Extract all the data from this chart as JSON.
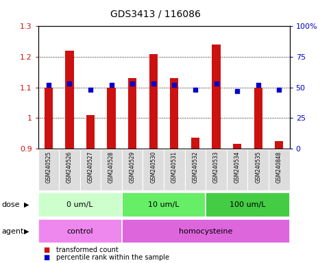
{
  "title": "GDS3413 / 116086",
  "samples": [
    "GSM240525",
    "GSM240526",
    "GSM240527",
    "GSM240528",
    "GSM240529",
    "GSM240530",
    "GSM240531",
    "GSM240532",
    "GSM240533",
    "GSM240534",
    "GSM240535",
    "GSM240848"
  ],
  "transformed_count": [
    1.1,
    1.22,
    1.01,
    1.1,
    1.13,
    1.21,
    1.13,
    0.935,
    1.24,
    0.915,
    1.1,
    0.925
  ],
  "percentile_rank": [
    52,
    53,
    48,
    52,
    53,
    53,
    52,
    48,
    53,
    47,
    52,
    48
  ],
  "ylim_left": [
    0.9,
    1.3
  ],
  "ylim_right": [
    0,
    100
  ],
  "bar_color": "#cc1111",
  "dot_color": "#0000cc",
  "bar_width": 0.4,
  "dose_groups": [
    {
      "label": "0 um/L",
      "start": 0,
      "end": 3,
      "color": "#ccffcc"
    },
    {
      "label": "10 um/L",
      "start": 4,
      "end": 7,
      "color": "#66ee66"
    },
    {
      "label": "100 um/L",
      "start": 8,
      "end": 11,
      "color": "#44cc44"
    }
  ],
  "agent_groups": [
    {
      "label": "control",
      "start": 0,
      "end": 3,
      "color": "#ee88ee"
    },
    {
      "label": "homocysteine",
      "start": 4,
      "end": 11,
      "color": "#dd66dd"
    }
  ],
  "dose_label": "dose",
  "agent_label": "agent",
  "legend_items": [
    {
      "label": "transformed count",
      "color": "#cc1111"
    },
    {
      "label": "percentile rank within the sample",
      "color": "#0000cc"
    }
  ],
  "grid_yticks_left": [
    0.9,
    1.0,
    1.1,
    1.2,
    1.3
  ],
  "grid_yticks_right": [
    0,
    25,
    50,
    75,
    100
  ],
  "right_tick_labels": [
    "0",
    "25",
    "50",
    "75",
    "100%"
  ],
  "left_tick_labels": [
    "0.9",
    "1",
    "1.1",
    "1.2",
    "1.3"
  ],
  "xticklabel_bg": "#dddddd",
  "background_color": "#ffffff"
}
